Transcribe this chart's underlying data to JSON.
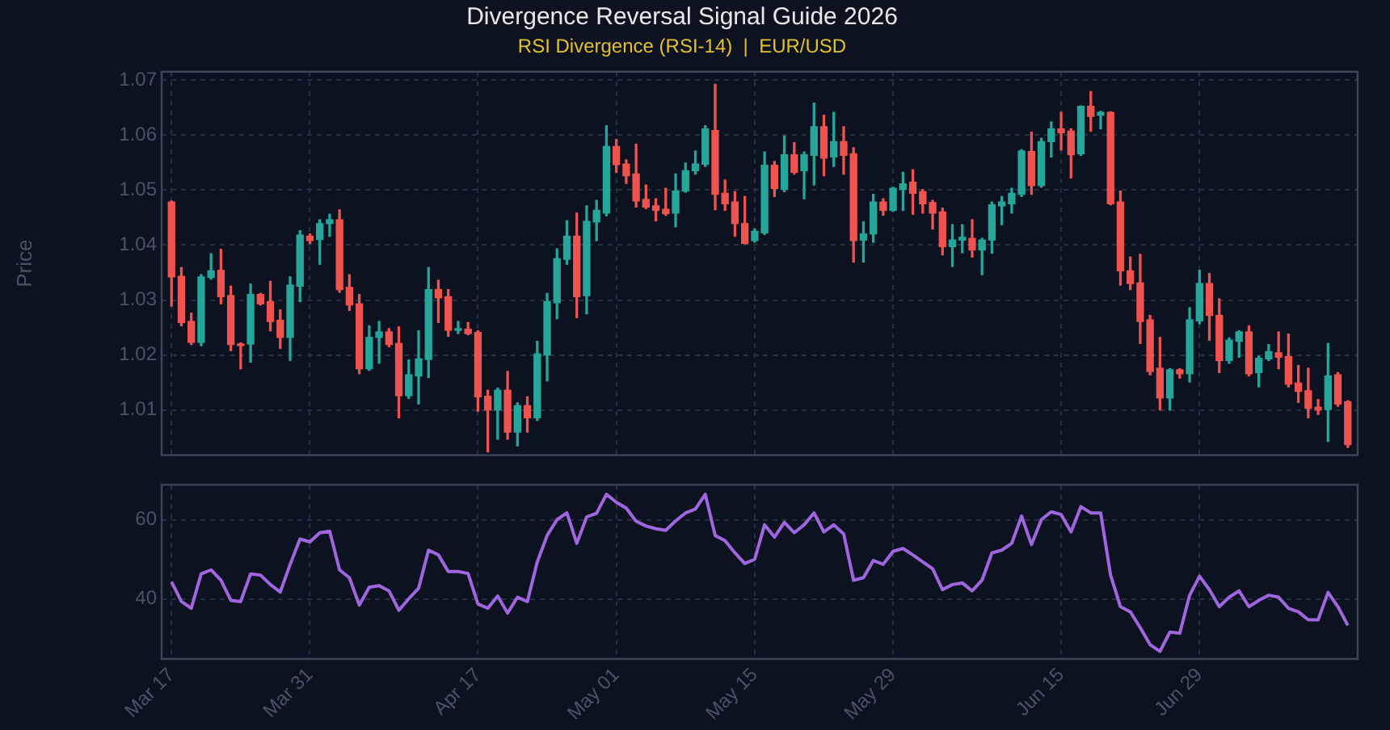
{
  "chart_data": [
    {
      "type": "candlestick",
      "title": "Divergence Reversal Signal Guide 2026",
      "subtitle": "RSI Divergence (RSI-14)  |  EUR/USD",
      "ylabel": "Price",
      "x": [
        "--03-17",
        "--03-18",
        "--03-19",
        "--03-20",
        "--03-21",
        "--03-22",
        "--03-23",
        "--03-24",
        "--03-25",
        "--03-26",
        "--03-27",
        "--03-28",
        "--03-29",
        "--03-30",
        "--03-31",
        "--04-01",
        "--04-02",
        "--04-03",
        "--04-04",
        "--04-05",
        "--04-06",
        "--04-07",
        "--04-08",
        "--04-09",
        "--04-10",
        "--04-11",
        "--04-12",
        "--04-13",
        "--04-14",
        "--04-15",
        "--04-16",
        "--04-17",
        "--04-18",
        "--04-19",
        "--04-20",
        "--04-21",
        "--04-22",
        "--04-23",
        "--04-24",
        "--04-25",
        "--04-26",
        "--04-27",
        "--04-28",
        "--04-29",
        "--04-30",
        "--05-01",
        "--05-02",
        "--05-03",
        "--05-04",
        "--05-05",
        "--05-06",
        "--05-07",
        "--05-08",
        "--05-09",
        "--05-10",
        "--05-11",
        "--05-12",
        "--05-13",
        "--05-14",
        "--05-15",
        "--05-16",
        "--05-17",
        "--05-18",
        "--05-19",
        "--05-20",
        "--05-21",
        "--05-22",
        "--05-23",
        "--05-24",
        "--05-25",
        "--05-26",
        "--05-27",
        "--05-28",
        "--05-29",
        "--05-30",
        "--05-31",
        "--06-01",
        "--06-02",
        "--06-03",
        "--06-04",
        "--06-05",
        "--06-06",
        "--06-07",
        "--06-08",
        "--06-09",
        "--06-10",
        "--06-11",
        "--06-12",
        "--06-13",
        "--06-14",
        "--06-15",
        "--06-16",
        "--06-17",
        "--06-18",
        "--06-19",
        "--06-20",
        "--06-21",
        "--06-22",
        "--06-23",
        "--06-24",
        "--06-25",
        "--06-26",
        "--06-27",
        "--06-28",
        "--06-29",
        "--06-30",
        "--07-01",
        "--07-02",
        "--07-03",
        "--07-04",
        "--07-05",
        "--07-06",
        "--07-07",
        "--07-08",
        "--07-09",
        "--07-10",
        "--07-11",
        "--07-12",
        "--07-13",
        "--07-14"
      ],
      "ohlc": [
        [
          1.0478,
          1.048,
          1.0289,
          1.0342
        ],
        [
          1.0343,
          1.0359,
          1.0253,
          1.0259
        ],
        [
          1.0261,
          1.0276,
          1.0219,
          1.0223
        ],
        [
          1.0223,
          1.0346,
          1.0217,
          1.0342
        ],
        [
          1.0341,
          1.0384,
          1.0338,
          1.0353
        ],
        [
          1.0354,
          1.0392,
          1.0293,
          1.0306
        ],
        [
          1.0308,
          1.0325,
          1.0208,
          1.0219
        ],
        [
          1.022,
          1.0222,
          1.0175,
          1.0217
        ],
        [
          1.022,
          1.0329,
          1.0187,
          1.031
        ],
        [
          1.031,
          1.0312,
          1.0291,
          1.0293
        ],
        [
          1.0297,
          1.0334,
          1.0244,
          1.0261
        ],
        [
          1.0263,
          1.0282,
          1.0212,
          1.0232
        ],
        [
          1.0232,
          1.0342,
          1.019,
          1.0327
        ],
        [
          1.0325,
          1.0426,
          1.0297,
          1.0418
        ],
        [
          1.0416,
          1.042,
          1.0403,
          1.0408
        ],
        [
          1.041,
          1.0446,
          1.0365,
          1.0439
        ],
        [
          1.0439,
          1.0456,
          1.0416,
          1.0446
        ],
        [
          1.0446,
          1.0464,
          1.0314,
          1.0319
        ],
        [
          1.0323,
          1.0346,
          1.0281,
          1.0291
        ],
        [
          1.0293,
          1.031,
          1.0166,
          1.0175
        ],
        [
          1.0175,
          1.0253,
          1.0172,
          1.0232
        ],
        [
          1.0232,
          1.0261,
          1.0185,
          1.0242
        ],
        [
          1.0242,
          1.0248,
          1.0215,
          1.0219
        ],
        [
          1.0221,
          1.0251,
          1.0086,
          1.0126
        ],
        [
          1.0126,
          1.0191,
          1.0121,
          1.0164
        ],
        [
          1.0162,
          1.0244,
          1.0111,
          1.0193
        ],
        [
          1.0192,
          1.0359,
          1.0159,
          1.0319
        ],
        [
          1.0319,
          1.0336,
          1.0259,
          1.0304
        ],
        [
          1.0306,
          1.0319,
          1.0234,
          1.0245
        ],
        [
          1.0245,
          1.0261,
          1.0239,
          1.0247
        ],
        [
          1.0247,
          1.0259,
          1.0237,
          1.0239
        ],
        [
          1.0241,
          1.0244,
          1.0098,
          1.0124
        ],
        [
          1.0125,
          1.0136,
          1.0024,
          1.01
        ],
        [
          1.01,
          1.014,
          1.0047,
          1.0136
        ],
        [
          1.0136,
          1.017,
          1.0047,
          1.006
        ],
        [
          1.006,
          1.0113,
          1.0035,
          1.0108
        ],
        [
          1.0108,
          1.0124,
          1.006,
          1.0086
        ],
        [
          1.0086,
          1.0225,
          1.0081,
          1.0202
        ],
        [
          1.02,
          1.0312,
          1.0153,
          1.0297
        ],
        [
          1.0295,
          1.0393,
          1.0266,
          1.0375
        ],
        [
          1.0374,
          1.0444,
          1.0365,
          1.0416
        ],
        [
          1.0416,
          1.0458,
          1.0268,
          1.0306
        ],
        [
          1.0308,
          1.0471,
          1.0275,
          1.0443
        ],
        [
          1.0442,
          1.0481,
          1.0408,
          1.0463
        ],
        [
          1.0458,
          1.0617,
          1.0453,
          1.0579
        ],
        [
          1.0579,
          1.0592,
          1.0532,
          1.0546
        ],
        [
          1.0547,
          1.0555,
          1.0512,
          1.0526
        ],
        [
          1.0529,
          1.0583,
          1.0469,
          1.048
        ],
        [
          1.0483,
          1.0509,
          1.0466,
          1.0469
        ],
        [
          1.0471,
          1.0484,
          1.0444,
          1.0463
        ],
        [
          1.0465,
          1.0503,
          1.0454,
          1.0457
        ],
        [
          1.0458,
          1.0529,
          1.0433,
          1.0498
        ],
        [
          1.0498,
          1.0549,
          1.0496,
          1.0535
        ],
        [
          1.0535,
          1.0571,
          1.0529,
          1.0547
        ],
        [
          1.0547,
          1.0617,
          1.0543,
          1.0611
        ],
        [
          1.0608,
          1.0692,
          1.0464,
          1.0492
        ],
        [
          1.0494,
          1.0518,
          1.0463,
          1.0475
        ],
        [
          1.0478,
          1.0497,
          1.0416,
          1.0439
        ],
        [
          1.0439,
          1.0488,
          1.0402,
          1.0403
        ],
        [
          1.0408,
          1.0429,
          1.0405,
          1.0425
        ],
        [
          1.0422,
          1.0569,
          1.0419,
          1.0545
        ],
        [
          1.0545,
          1.0552,
          1.0488,
          1.0503
        ],
        [
          1.0501,
          1.0598,
          1.0497,
          1.0564
        ],
        [
          1.0564,
          1.0586,
          1.0529,
          1.0532
        ],
        [
          1.0535,
          1.0569,
          1.0484,
          1.0564
        ],
        [
          1.0563,
          1.0658,
          1.0509,
          1.0615
        ],
        [
          1.0615,
          1.0636,
          1.0526,
          1.0558
        ],
        [
          1.056,
          1.0641,
          1.0543,
          1.0588
        ],
        [
          1.0588,
          1.0615,
          1.0529,
          1.0563
        ],
        [
          1.0566,
          1.0577,
          1.0369,
          1.0408
        ],
        [
          1.0409,
          1.0442,
          1.0369,
          1.042
        ],
        [
          1.042,
          1.0492,
          1.0405,
          1.0478
        ],
        [
          1.0478,
          1.0484,
          1.0454,
          1.0463
        ],
        [
          1.0463,
          1.0505,
          1.0461,
          1.0503
        ],
        [
          1.0501,
          1.0532,
          1.0463,
          1.0511
        ],
        [
          1.0514,
          1.0537,
          1.0456,
          1.0494
        ],
        [
          1.0497,
          1.0501,
          1.0458,
          1.0475
        ],
        [
          1.0477,
          1.0481,
          1.0429,
          1.0458
        ],
        [
          1.046,
          1.0467,
          1.0382,
          1.0397
        ],
        [
          1.0397,
          1.0437,
          1.0361,
          1.0409
        ],
        [
          1.0409,
          1.0437,
          1.0386,
          1.0414
        ],
        [
          1.0412,
          1.0446,
          1.0378,
          1.0391
        ],
        [
          1.0391,
          1.0412,
          1.0346,
          1.0409
        ],
        [
          1.0409,
          1.0478,
          1.0385,
          1.0473
        ],
        [
          1.0471,
          1.0488,
          1.0437,
          1.0478
        ],
        [
          1.0475,
          1.0503,
          1.0458,
          1.0494
        ],
        [
          1.0492,
          1.0573,
          1.0488,
          1.0571
        ],
        [
          1.057,
          1.0605,
          1.0492,
          1.0508
        ],
        [
          1.0508,
          1.0594,
          1.0505,
          1.0588
        ],
        [
          1.0588,
          1.0624,
          1.056,
          1.0611
        ],
        [
          1.0611,
          1.0641,
          1.0573,
          1.0604
        ],
        [
          1.0607,
          1.0611,
          1.0522,
          1.0564
        ],
        [
          1.0566,
          1.0653,
          1.0563,
          1.0652
        ],
        [
          1.0652,
          1.0679,
          1.0607,
          1.0634
        ],
        [
          1.0636,
          1.0643,
          1.0611,
          1.0641
        ],
        [
          1.0641,
          1.0642,
          1.0473,
          1.0475
        ],
        [
          1.0478,
          1.0498,
          1.0327,
          1.0353
        ],
        [
          1.0353,
          1.0378,
          1.0319,
          1.033
        ],
        [
          1.0331,
          1.0383,
          1.0221,
          1.0261
        ],
        [
          1.0264,
          1.0272,
          1.0164,
          1.017
        ],
        [
          1.0176,
          1.0232,
          1.01,
          1.0122
        ],
        [
          1.0122,
          1.0175,
          1.01,
          1.0173
        ],
        [
          1.0173,
          1.0175,
          1.0158,
          1.0166
        ],
        [
          1.0166,
          1.0286,
          1.0151,
          1.0264
        ],
        [
          1.0262,
          1.0354,
          1.0257,
          1.033
        ],
        [
          1.033,
          1.0348,
          1.0227,
          1.0272
        ],
        [
          1.0272,
          1.0302,
          1.0168,
          1.019
        ],
        [
          1.019,
          1.0231,
          1.0185,
          1.0227
        ],
        [
          1.0225,
          1.0244,
          1.0196,
          1.0242
        ],
        [
          1.0242,
          1.0253,
          1.0162,
          1.0166
        ],
        [
          1.0168,
          1.0198,
          1.0142,
          1.0194
        ],
        [
          1.0193,
          1.0219,
          1.019,
          1.0206
        ],
        [
          1.0204,
          1.0242,
          1.0175,
          1.0196
        ],
        [
          1.0197,
          1.0238,
          1.0142,
          1.0147
        ],
        [
          1.0149,
          1.0181,
          1.0114,
          1.0134
        ],
        [
          1.0135,
          1.0176,
          1.0086,
          1.0103
        ],
        [
          1.0105,
          1.0119,
          1.0092,
          1.01
        ],
        [
          1.0101,
          1.0221,
          1.0043,
          1.0162
        ],
        [
          1.0164,
          1.0168,
          1.0107,
          1.0111
        ],
        [
          1.0115,
          1.0117,
          1.0032,
          1.0037
        ]
      ],
      "colors": [
        "#ef5350",
        "#ef5350",
        "#ef5350",
        "#26a69a",
        "#26a69a",
        "#ef5350",
        "#ef5350",
        "#ef5350",
        "#26a69a",
        "#ef5350",
        "#ef5350",
        "#ef5350",
        "#26a69a",
        "#26a69a",
        "#ef5350",
        "#26a69a",
        "#26a69a",
        "#ef5350",
        "#ef5350",
        "#ef5350",
        "#26a69a",
        "#26a69a",
        "#ef5350",
        "#ef5350",
        "#26a69a",
        "#26a69a",
        "#26a69a",
        "#ef5350",
        "#ef5350",
        "#26a69a",
        "#ef5350",
        "#ef5350",
        "#ef5350",
        "#26a69a",
        "#ef5350",
        "#26a69a",
        "#ef5350",
        "#26a69a",
        "#26a69a",
        "#26a69a",
        "#26a69a",
        "#ef5350",
        "#26a69a",
        "#26a69a",
        "#26a69a",
        "#ef5350",
        "#ef5350",
        "#ef5350",
        "#ef5350",
        "#ef5350",
        "#ef5350",
        "#26a69a",
        "#26a69a",
        "#26a69a",
        "#26a69a",
        "#ef5350",
        "#ef5350",
        "#ef5350",
        "#ef5350",
        "#26a69a",
        "#26a69a",
        "#ef5350",
        "#26a69a",
        "#ef5350",
        "#26a69a",
        "#26a69a",
        "#ef5350",
        "#26a69a",
        "#ef5350",
        "#ef5350",
        "#26a69a",
        "#26a69a",
        "#ef5350",
        "#26a69a",
        "#26a69a",
        "#ef5350",
        "#ef5350",
        "#ef5350",
        "#ef5350",
        "#26a69a",
        "#26a69a",
        "#ef5350",
        "#26a69a",
        "#26a69a",
        "#26a69a",
        "#26a69a",
        "#26a69a",
        "#ef5350",
        "#26a69a",
        "#26a69a",
        "#ef5350",
        "#ef5350",
        "#26a69a",
        "#ef5350",
        "#26a69a",
        "#ef5350",
        "#ef5350",
        "#ef5350",
        "#ef5350",
        "#ef5350",
        "#ef5350",
        "#26a69a",
        "#ef5350",
        "#26a69a",
        "#26a69a",
        "#ef5350",
        "#ef5350",
        "#26a69a",
        "#26a69a",
        "#ef5350",
        "#26a69a",
        "#26a69a",
        "#ef5350",
        "#ef5350",
        "#ef5350",
        "#ef5350",
        "#ef5350",
        "#26a69a",
        "#ef5350",
        "#ef5350"
      ],
      "xlim": [
        "--03-16",
        "--07-15"
      ],
      "xticks": [
        {
          "value": "--03-17",
          "label": "Mar 17"
        },
        {
          "value": "--03-31",
          "label": "Mar 31"
        },
        {
          "value": "--04-17",
          "label": "Apr 17"
        },
        {
          "value": "--05-01",
          "label": "May 01"
        },
        {
          "value": "--05-15",
          "label": "May 15"
        },
        {
          "value": "--05-29",
          "label": "May 29"
        },
        {
          "value": "--06-15",
          "label": "Jun 15"
        },
        {
          "value": "--06-29",
          "label": "Jun 29"
        }
      ],
      "ylim": [
        1.0018,
        1.0715
      ],
      "yticks": [
        1.01,
        1.02,
        1.03,
        1.04,
        1.05,
        1.06,
        1.07
      ],
      "grid": true,
      "tick_labels": "y"
    },
    {
      "type": "line",
      "x": [
        "--03-17",
        "--03-18",
        "--03-19",
        "--03-20",
        "--03-21",
        "--03-22",
        "--03-23",
        "--03-24",
        "--03-25",
        "--03-26",
        "--03-27",
        "--03-28",
        "--03-29",
        "--03-30",
        "--03-31",
        "--04-01",
        "--04-02",
        "--04-03",
        "--04-04",
        "--04-05",
        "--04-06",
        "--04-07",
        "--04-08",
        "--04-09",
        "--04-10",
        "--04-11",
        "--04-12",
        "--04-13",
        "--04-14",
        "--04-15",
        "--04-16",
        "--04-17",
        "--04-18",
        "--04-19",
        "--04-20",
        "--04-21",
        "--04-22",
        "--04-23",
        "--04-24",
        "--04-25",
        "--04-26",
        "--04-27",
        "--04-28",
        "--04-29",
        "--04-30",
        "--05-01",
        "--05-02",
        "--05-03",
        "--05-04",
        "--05-05",
        "--05-06",
        "--05-07",
        "--05-08",
        "--05-09",
        "--05-10",
        "--05-11",
        "--05-12",
        "--05-13",
        "--05-14",
        "--05-15",
        "--05-16",
        "--05-17",
        "--05-18",
        "--05-19",
        "--05-20",
        "--05-21",
        "--05-22",
        "--05-23",
        "--05-24",
        "--05-25",
        "--05-26",
        "--05-27",
        "--05-28",
        "--05-29",
        "--05-30",
        "--05-31",
        "--06-01",
        "--06-02",
        "--06-03",
        "--06-04",
        "--06-05",
        "--06-06",
        "--06-07",
        "--06-08",
        "--06-09",
        "--06-10",
        "--06-11",
        "--06-12",
        "--06-13",
        "--06-14",
        "--06-15",
        "--06-16",
        "--06-17",
        "--06-18",
        "--06-19",
        "--06-20",
        "--06-21",
        "--06-22",
        "--06-23",
        "--06-24",
        "--06-25",
        "--06-26",
        "--06-27",
        "--06-28",
        "--06-29",
        "--06-30",
        "--07-01",
        "--07-02",
        "--07-03",
        "--07-04",
        "--07-05",
        "--07-06",
        "--07-07",
        "--07-08",
        "--07-09",
        "--07-10",
        "--07-11",
        "--07-12",
        "--07-13",
        "--07-14"
      ],
      "series": [
        {
          "color": "#a066e0",
          "values": [
            44.3,
            39.3,
            37.6,
            46.3,
            47.3,
            44.7,
            39.6,
            39.3,
            46.3,
            46,
            43.6,
            41.7,
            48.7,
            55.1,
            54.4,
            56.7,
            57.1,
            47.3,
            45.3,
            38.4,
            42.9,
            43.3,
            42,
            37.1,
            40,
            42.7,
            52.3,
            51.1,
            46.9,
            46.9,
            46.4,
            38.7,
            37.6,
            40.7,
            36.4,
            40.4,
            39.3,
            49.3,
            56,
            60,
            61.7,
            54,
            60.7,
            61.6,
            66.4,
            64.4,
            62.9,
            59.6,
            58.4,
            57.7,
            57.3,
            59.7,
            61.7,
            62.7,
            66.4,
            56,
            54.7,
            51.6,
            48.9,
            50,
            58.7,
            55.6,
            59.3,
            56.7,
            58.7,
            61.7,
            56.9,
            58.7,
            56.4,
            44.7,
            45.3,
            49.7,
            48.7,
            52,
            52.7,
            51.1,
            49.3,
            47.6,
            42.3,
            43.6,
            44,
            42,
            44.7,
            51.6,
            52.3,
            54,
            60.9,
            53.7,
            60,
            62,
            61.3,
            56.9,
            63.3,
            61.7,
            61.7,
            46,
            38,
            36.7,
            32.7,
            28.4,
            26.7,
            31.6,
            31.3,
            40.9,
            45.7,
            42.3,
            38,
            40.4,
            42,
            38,
            39.6,
            40.9,
            40.4,
            37.6,
            36.7,
            34.7,
            34.7,
            41.6,
            38,
            33.3
          ]
        }
      ],
      "marker": "none",
      "xlim": [
        "--03-16",
        "--07-15"
      ],
      "xticks": [
        {
          "value": "--03-17",
          "label": "Mar 17"
        },
        {
          "value": "--03-31",
          "label": "Mar 31"
        },
        {
          "value": "--04-17",
          "label": "Apr 17"
        },
        {
          "value": "--05-01",
          "label": "May 01"
        },
        {
          "value": "--05-15",
          "label": "May 15"
        },
        {
          "value": "--05-29",
          "label": "May 29"
        },
        {
          "value": "--06-15",
          "label": "Jun 15"
        },
        {
          "value": "--06-29",
          "label": "Jun 29"
        }
      ],
      "ylim": [
        24.8,
        68.8
      ],
      "yticks": [
        40,
        60
      ],
      "grid": true
    }
  ]
}
